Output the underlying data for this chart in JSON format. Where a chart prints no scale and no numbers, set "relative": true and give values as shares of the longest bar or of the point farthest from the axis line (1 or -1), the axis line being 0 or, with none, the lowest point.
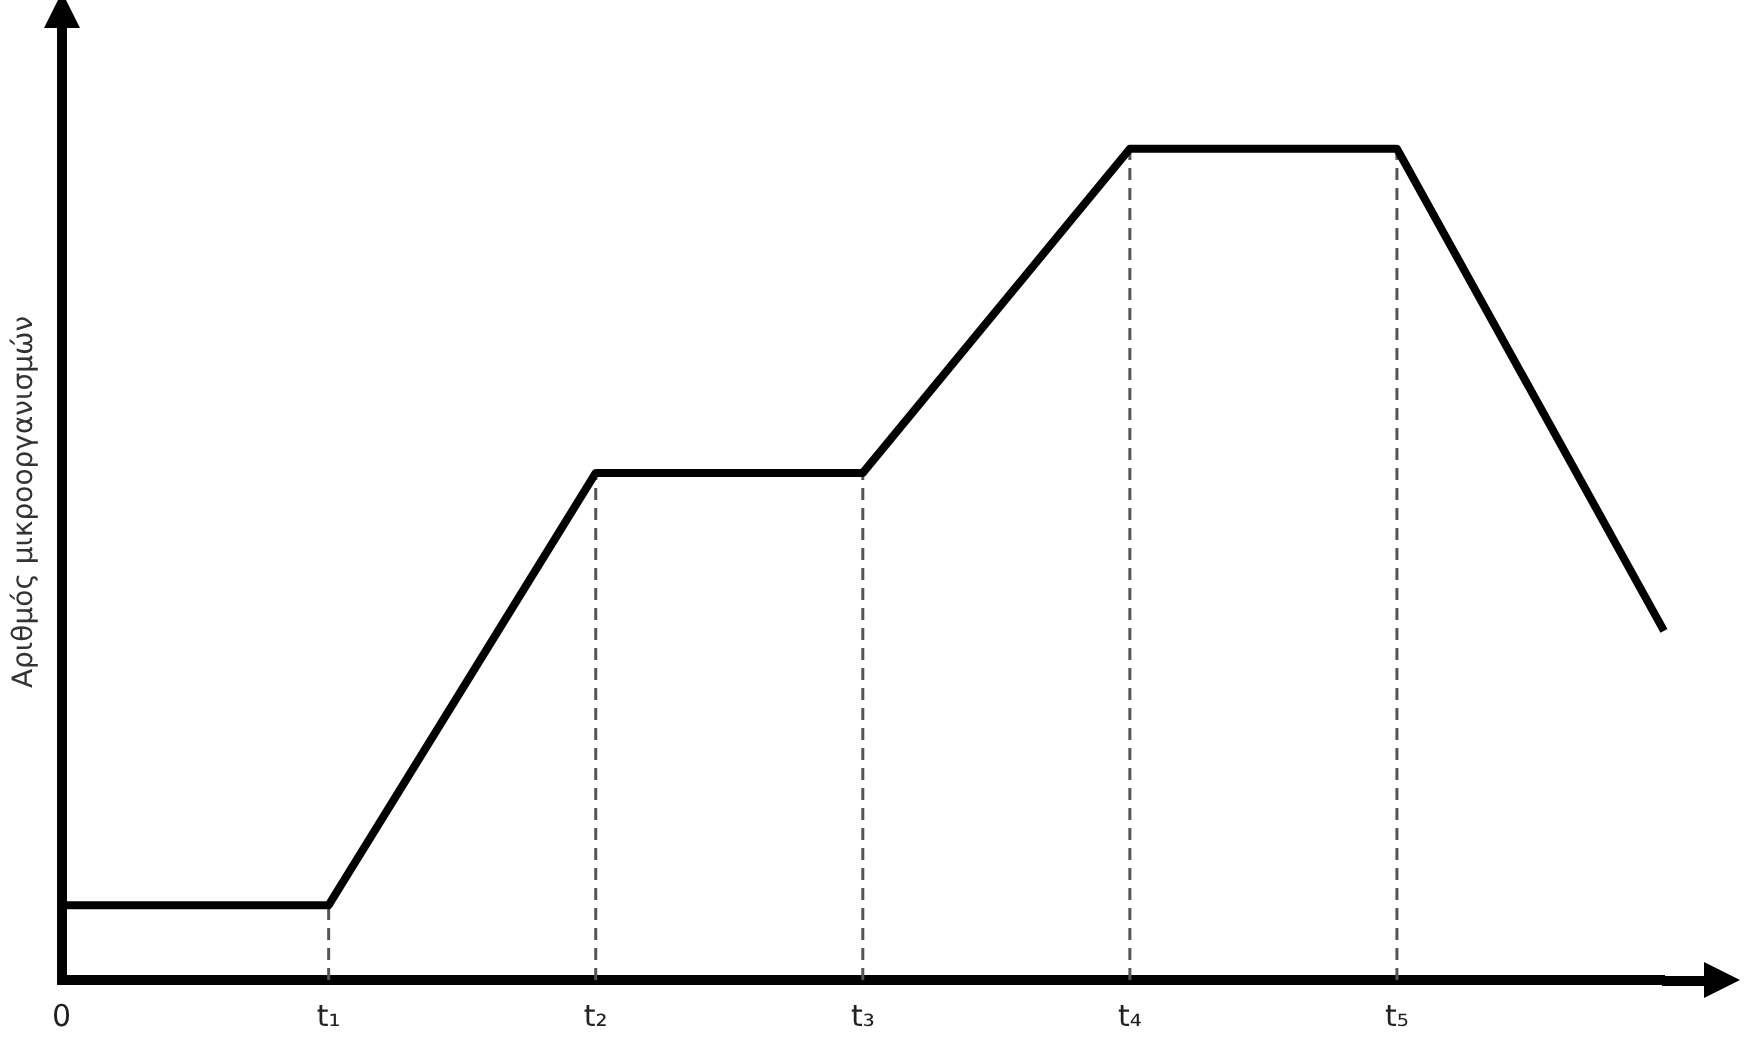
{
  "chart_data": {
    "type": "line",
    "ylabel": "Αριθμός μικροοργανισμών",
    "relative": true,
    "categories": [
      "0",
      "t₁",
      "t₂",
      "t₃",
      "t₄",
      "t₅",
      null
    ],
    "series": [
      {
        "color": "#000000",
        "values": [
          0.09,
          0.09,
          0.61,
          0.61,
          1,
          1,
          0.42
        ]
      }
    ],
    "ref_lines": [
      {
        "axis": "x",
        "value": "t₁",
        "color": "#555555",
        "line_style": "dashed"
      },
      {
        "axis": "x",
        "value": "t₂",
        "color": "#555555",
        "line_style": "dashed"
      },
      {
        "axis": "x",
        "value": "t₃",
        "color": "#555555",
        "line_style": "dashed"
      },
      {
        "axis": "x",
        "value": "t₄",
        "color": "#555555",
        "line_style": "dashed"
      },
      {
        "axis": "x",
        "value": "t₅",
        "color": "#555555",
        "line_style": "dashed"
      }
    ],
    "grid": false,
    "legend": false,
    "marker": "none",
    "line_style": "solid"
  }
}
